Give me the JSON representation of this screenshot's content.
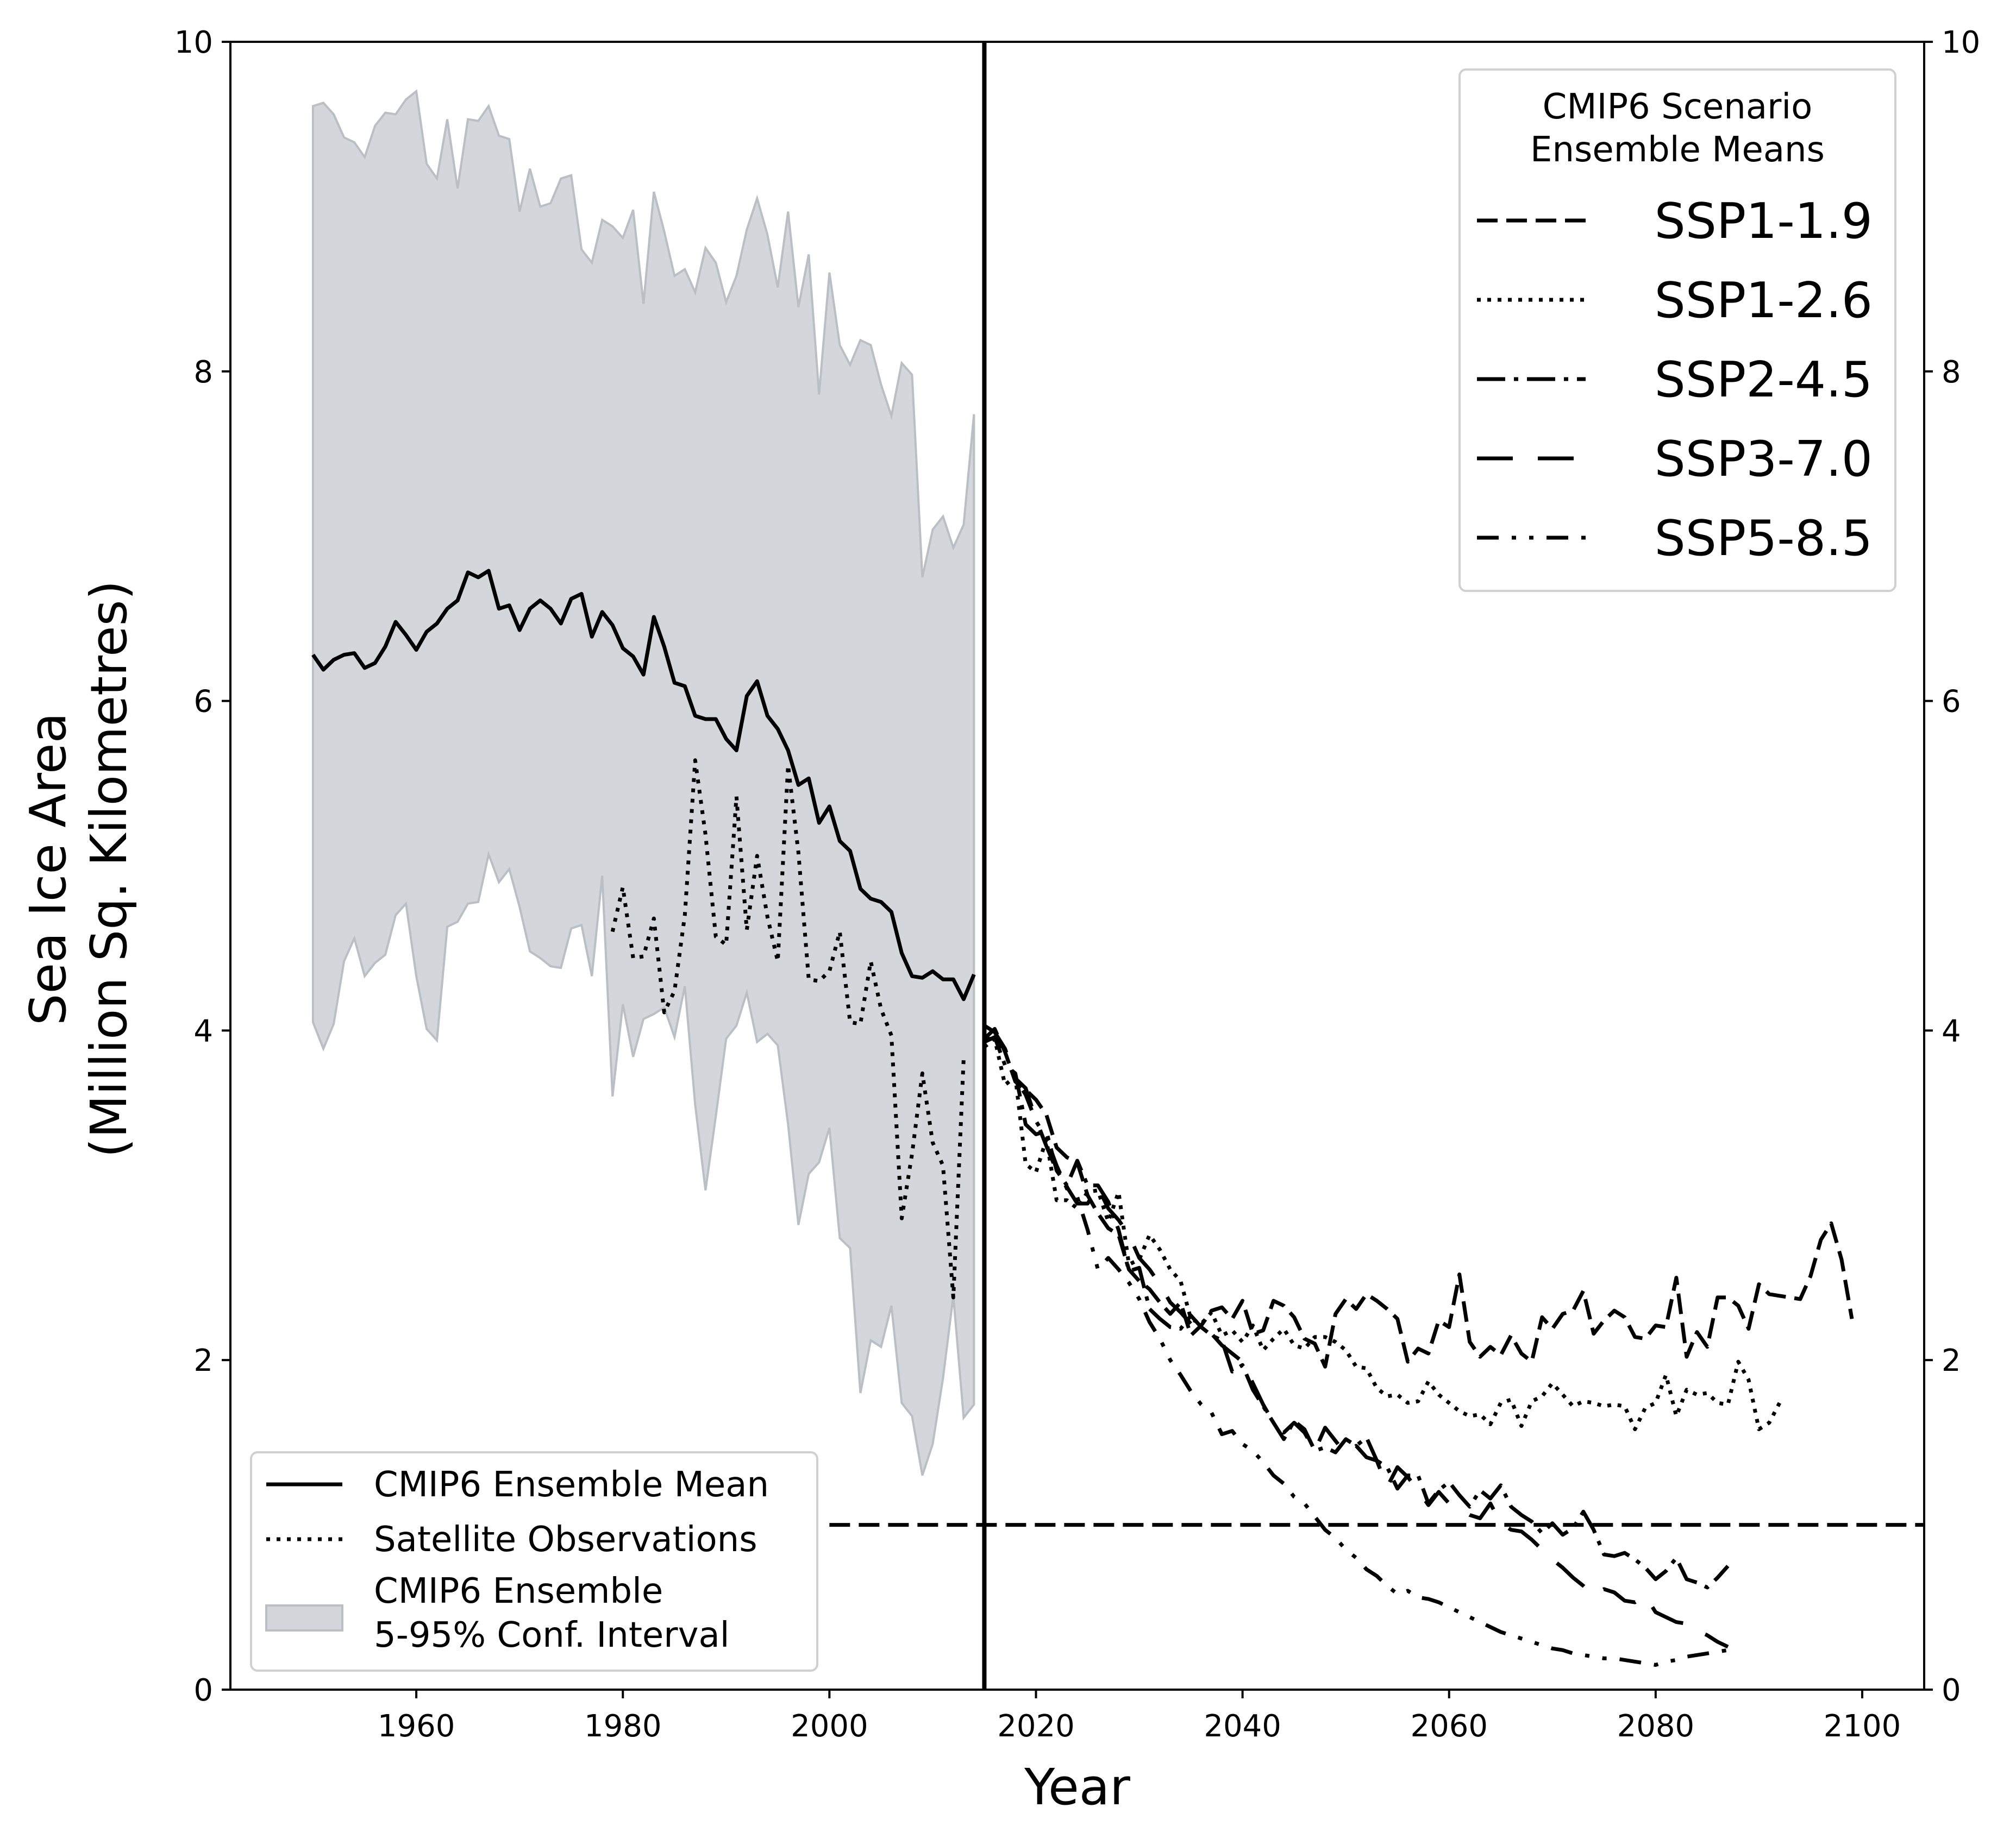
{
  "chart_data": {
    "type": "line",
    "xlabel": "Year",
    "ylabel": [
      "Sea Ice Area",
      "(Million Sq. Kilometres)"
    ],
    "xlim": [
      1942,
      2106
    ],
    "ylim": [
      0,
      10
    ],
    "x_ticks": [
      1960,
      1980,
      2000,
      2020,
      2040,
      2060,
      2080,
      2100
    ],
    "y_ticks": [
      0,
      2,
      4,
      6,
      8,
      10
    ],
    "right_y_axis_ticks": [
      0,
      2,
      4,
      6,
      8,
      10
    ],
    "grid": false,
    "vertical_line_year": 2015,
    "horizontal_reference": {
      "y": 1.0,
      "x_start": 2000,
      "x_end": 2106,
      "style": "dashed"
    },
    "lower_legend": {
      "placement": "lower-left",
      "entries": [
        {
          "label": "CMIP6 Ensemble Mean",
          "style": "solid"
        },
        {
          "label": "Satellite Observations",
          "style": "dotted"
        },
        {
          "label_lines": [
            "CMIP6 Ensemble",
            "5-95% Conf. Interval"
          ],
          "style": "band"
        }
      ]
    },
    "upper_legend": {
      "placement": "upper-right",
      "title_lines": [
        "CMIP6 Scenario",
        "Ensemble Means"
      ],
      "entries": [
        {
          "label": "SSP1-1.9",
          "style": "dashed"
        },
        {
          "label": "SSP1-2.6",
          "style": "dotted"
        },
        {
          "label": "SSP2-4.5",
          "style": "dashdot"
        },
        {
          "label": "SSP3-7.0",
          "style": "longdash"
        },
        {
          "label": "SSP5-8.5",
          "style": "dashdotdot"
        }
      ]
    },
    "historical": {
      "x_start": 1950,
      "mean": [
        6.28,
        6.19,
        6.25,
        6.28,
        6.29,
        6.2,
        6.23,
        6.33,
        6.48,
        6.4,
        6.31,
        6.42,
        6.47,
        6.56,
        6.61,
        6.78,
        6.75,
        6.79,
        6.56,
        6.58,
        6.43,
        6.56,
        6.61,
        6.56,
        6.47,
        6.62,
        6.65,
        6.39,
        6.54,
        6.46,
        6.32,
        6.27,
        6.16,
        6.51,
        6.33,
        6.11,
        6.09,
        5.91,
        5.89,
        5.89,
        5.77,
        5.7,
        6.03,
        6.12,
        5.91,
        5.83,
        5.7,
        5.49,
        5.53,
        5.26,
        5.36,
        5.15,
        5.09,
        4.86,
        4.8,
        4.78,
        4.72,
        4.47,
        4.33,
        4.32,
        4.36,
        4.31,
        4.31,
        4.19,
        4.34
      ],
      "band_upper": [
        9.61,
        9.63,
        9.56,
        9.42,
        9.39,
        9.3,
        9.49,
        9.57,
        9.56,
        9.65,
        9.7,
        9.26,
        9.17,
        9.53,
        9.11,
        9.53,
        9.52,
        9.61,
        9.43,
        9.41,
        8.97,
        9.23,
        9.0,
        9.02,
        9.17,
        9.19,
        8.74,
        8.66,
        8.92,
        8.88,
        8.81,
        8.98,
        8.41,
        9.09,
        8.85,
        8.58,
        8.62,
        8.48,
        8.75,
        8.66,
        8.42,
        8.58,
        8.86,
        9.05,
        8.83,
        8.51,
        8.97,
        8.39,
        8.71,
        7.86,
        8.6,
        8.16,
        8.04,
        8.19,
        8.16,
        7.92,
        7.73,
        8.05,
        7.98,
        6.75,
        7.04,
        7.12,
        6.93,
        7.07,
        7.74
      ],
      "band_lower": [
        4.05,
        3.89,
        4.04,
        4.42,
        4.56,
        4.33,
        4.41,
        4.46,
        4.7,
        4.77,
        4.33,
        4.01,
        3.94,
        4.63,
        4.66,
        4.77,
        4.78,
        5.07,
        4.9,
        4.98,
        4.75,
        4.48,
        4.44,
        4.39,
        4.38,
        4.62,
        4.64,
        4.33,
        4.94,
        3.6,
        4.16,
        3.84,
        4.07,
        4.1,
        4.14,
        3.96,
        4.27,
        3.55,
        3.03,
        3.48,
        3.95,
        4.03,
        4.23,
        3.93,
        3.98,
        3.91,
        3.43,
        2.82,
        3.13,
        3.2,
        3.41,
        2.74,
        2.68,
        1.8,
        2.12,
        2.08,
        2.33,
        1.74,
        1.66,
        1.3,
        1.49,
        1.89,
        2.39,
        1.65,
        1.73
      ]
    },
    "satellite": {
      "x_start": 1979,
      "values": [
        4.6,
        4.87,
        4.44,
        4.45,
        4.68,
        4.11,
        4.24,
        4.7,
        5.64,
        5.19,
        4.57,
        4.52,
        5.42,
        4.61,
        5.06,
        4.69,
        4.42,
        5.61,
        5.08,
        4.31,
        4.3,
        4.36,
        4.6,
        4.05,
        4.04,
        4.42,
        4.13,
        3.97,
        2.86,
        3.25,
        3.74,
        3.32,
        3.18,
        2.38,
        3.83
      ]
    },
    "scenarios_x_start": 2015,
    "series": [
      {
        "name": "SSP1-1.9",
        "style": "dashed",
        "values": [
          3.95,
          4.01,
          3.87,
          3.69,
          3.64,
          3.58,
          3.49,
          3.29,
          3.23,
          3.2,
          3.0,
          2.89,
          2.8,
          2.76,
          2.55,
          2.48,
          2.43,
          2.35,
          2.28,
          2.35,
          2.15,
          2.21,
          2.3,
          2.32,
          2.25,
          2.36,
          2.16,
          2.18,
          2.36,
          2.33,
          2.26,
          2.13,
          2.1,
          1.96,
          2.28,
          2.37,
          2.31,
          2.4,
          2.36,
          2.31,
          2.25,
          1.99,
          2.07,
          2.04,
          2.24,
          2.2,
          2.52,
          2.11,
          2.02,
          2.08,
          2.03,
          2.15,
          2.04,
          1.99,
          2.26,
          2.19,
          2.28,
          2.3,
          2.42,
          2.16,
          2.24,
          2.3,
          2.26,
          2.14,
          2.13,
          2.21,
          2.2,
          2.5,
          2.02,
          2.17,
          2.08,
          2.38,
          2.38,
          2.33,
          2.19,
          2.46,
          2.4,
          2.39,
          2.38,
          2.37,
          2.51,
          2.73,
          2.83,
          2.61,
          2.25
        ]
      },
      {
        "name": "SSP1-2.6",
        "style": "dotted",
        "values": [
          3.9,
          3.95,
          3.67,
          3.72,
          3.19,
          3.14,
          3.34,
          2.97,
          2.97,
          2.92,
          3.02,
          3.03,
          2.84,
          3.02,
          2.58,
          2.61,
          2.76,
          2.67,
          2.55,
          2.48,
          2.25,
          2.22,
          2.29,
          2.15,
          2.18,
          2.11,
          2.21,
          2.06,
          2.13,
          2.19,
          2.09,
          2.07,
          2.14,
          2.14,
          2.11,
          2.06,
          1.96,
          1.95,
          1.83,
          1.78,
          1.79,
          1.74,
          1.75,
          1.87,
          1.79,
          1.74,
          1.69,
          1.66,
          1.67,
          1.61,
          1.74,
          1.76,
          1.6,
          1.75,
          1.78,
          1.86,
          1.79,
          1.72,
          1.75,
          1.74,
          1.72,
          1.73,
          1.72,
          1.58,
          1.71,
          1.74,
          1.91,
          1.66,
          1.82,
          1.79,
          1.8,
          1.74,
          1.73,
          1.99,
          1.88,
          1.58,
          1.62,
          1.74
        ]
      },
      {
        "name": "SSP2-4.5",
        "style": "dashdot",
        "values": [
          3.93,
          3.96,
          3.79,
          3.74,
          3.43,
          3.37,
          3.39,
          3.15,
          3.06,
          3.21,
          3.06,
          3.06,
          2.96,
          2.79,
          2.54,
          2.56,
          2.31,
          2.25,
          2.2,
          2.19,
          2.27,
          2.2,
          2.15,
          2.12,
          1.93,
          1.97,
          1.82,
          1.72,
          1.62,
          1.52,
          1.63,
          1.58,
          1.45,
          1.47,
          1.44,
          1.52,
          1.48,
          1.53,
          1.39,
          1.35,
          1.22,
          1.3,
          1.3,
          1.13,
          1.21,
          1.26,
          1.18,
          1.11,
          1.21,
          1.16,
          1.24,
          1.11,
          1.06,
          1.02,
          0.95,
          1.01,
          0.94,
          0.98,
          1.08,
          0.97,
          0.82,
          0.81,
          0.83,
          0.79,
          0.74,
          0.67,
          0.72,
          0.8,
          0.67,
          0.65,
          0.62,
          0.68,
          0.75
        ]
      },
      {
        "name": "SSP3-7.0",
        "style": "longdash",
        "values": [
          4.03,
          3.99,
          3.89,
          3.71,
          3.65,
          3.46,
          3.3,
          3.15,
          3.05,
          2.95,
          2.95,
          3.05,
          2.92,
          2.85,
          2.76,
          2.62,
          2.55,
          2.46,
          2.35,
          2.29,
          2.22,
          2.19,
          2.16,
          2.09,
          2.04,
          1.99,
          1.86,
          1.73,
          1.62,
          1.56,
          1.62,
          1.56,
          1.45,
          1.59,
          1.51,
          1.43,
          1.48,
          1.41,
          1.39,
          1.23,
          1.35,
          1.29,
          1.21,
          1.12,
          1.2,
          1.13,
          1.1,
          1.06,
          1.04,
          1.13,
          1.01,
          0.97,
          0.96,
          0.91,
          0.85,
          0.79,
          0.74,
          0.68,
          0.63,
          0.57,
          0.61,
          0.59,
          0.54,
          0.53,
          0.57,
          0.47,
          0.44,
          0.41,
          0.4,
          0.36,
          0.33,
          0.29,
          0.26
        ]
      },
      {
        "name": "SSP5-8.5",
        "style": "dashdotdot",
        "values": [
          3.95,
          3.95,
          3.86,
          3.71,
          3.61,
          3.45,
          3.35,
          3.18,
          3.04,
          2.99,
          2.79,
          2.55,
          2.62,
          2.55,
          2.47,
          2.37,
          2.23,
          2.13,
          2.0,
          1.91,
          1.81,
          1.73,
          1.68,
          1.55,
          1.57,
          1.49,
          1.45,
          1.38,
          1.3,
          1.25,
          1.17,
          1.13,
          1.05,
          0.97,
          0.92,
          0.85,
          0.8,
          0.73,
          0.69,
          0.63,
          0.58,
          0.6,
          0.56,
          0.55,
          0.53,
          0.5,
          0.47,
          0.44,
          0.41,
          0.38,
          0.35,
          0.33,
          0.31,
          0.29,
          0.27,
          0.25,
          0.24,
          0.22,
          0.21,
          0.2,
          0.19,
          0.19,
          0.18,
          0.17,
          0.16,
          0.15,
          0.17,
          0.18,
          0.2,
          0.21,
          0.22,
          0.23,
          0.24
        ]
      }
    ]
  }
}
